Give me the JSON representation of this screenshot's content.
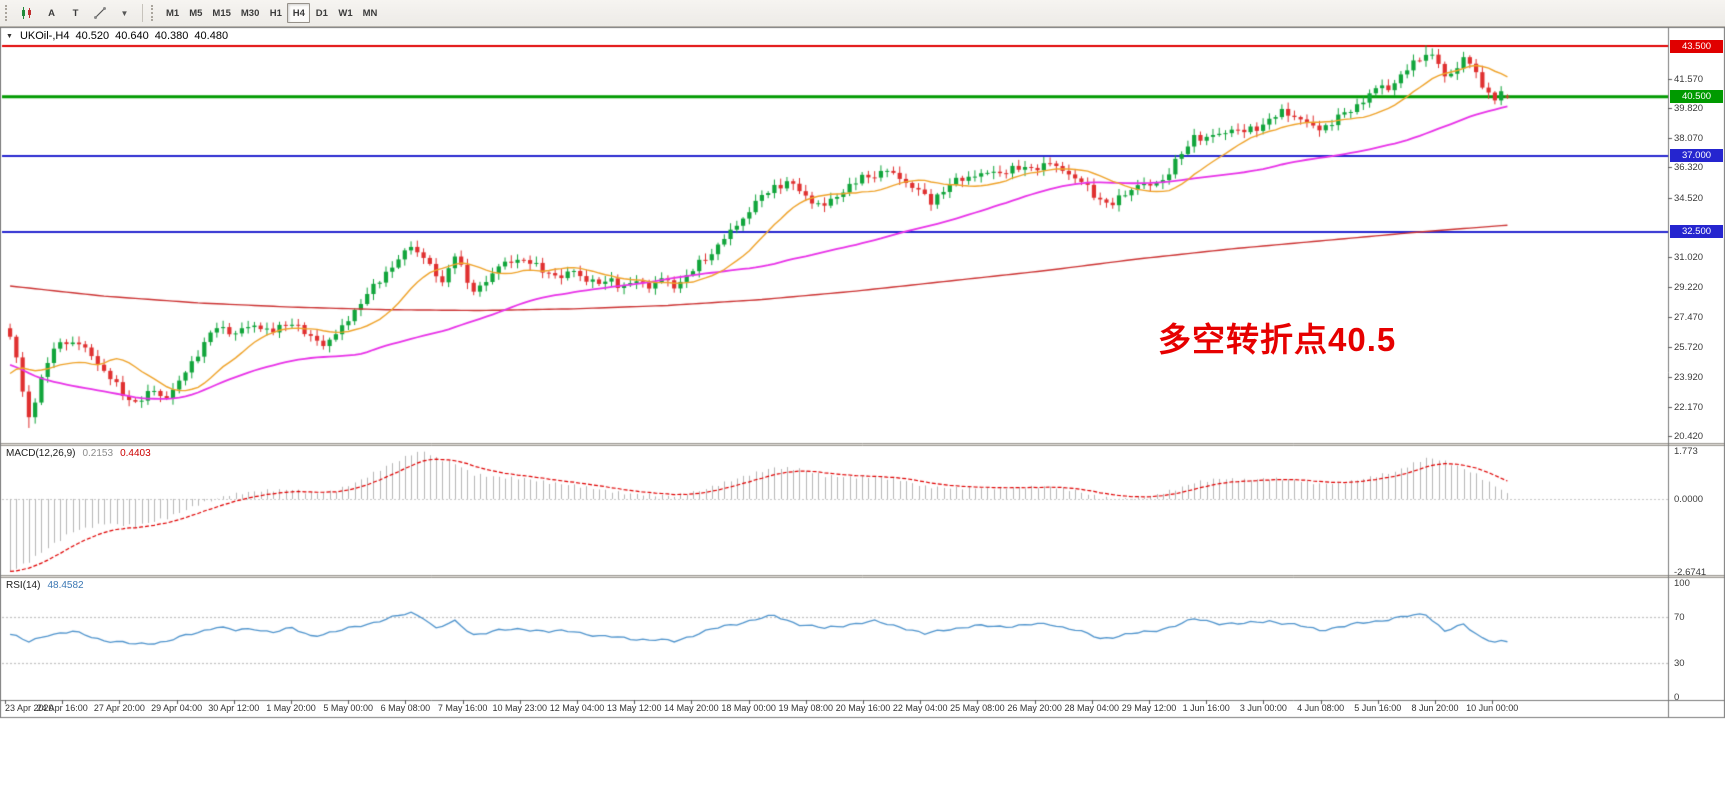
{
  "toolbar": {
    "arrow_tool_label": "A",
    "text_tool_label": "T",
    "timeframes": [
      "M1",
      "M5",
      "M15",
      "M30",
      "H1",
      "H4",
      "D1",
      "W1",
      "MN"
    ],
    "active_timeframe": "H4"
  },
  "icons": {
    "symbol_caret": "▼",
    "tool_caret": "▼"
  },
  "chart_header": {
    "symbol": "UKOil-,H4",
    "open": "40.520",
    "high": "40.640",
    "low": "40.380",
    "close": "40.480"
  },
  "annotation": {
    "text": "多空转折点40.5",
    "color": "#e60000"
  },
  "price_axis": {
    "labels": [
      {
        "text": "41.570",
        "price": 41.57
      },
      {
        "text": "39.820",
        "price": 39.82
      },
      {
        "text": "38.070",
        "price": 38.07
      },
      {
        "text": "36.320",
        "price": 36.32
      },
      {
        "text": "34.520",
        "price": 34.52
      },
      {
        "text": "31.020",
        "price": 31.02
      },
      {
        "text": "29.220",
        "price": 29.22
      },
      {
        "text": "27.470",
        "price": 27.47
      },
      {
        "text": "25.720",
        "price": 25.72
      },
      {
        "text": "23.920",
        "price": 23.92
      },
      {
        "text": "22.170",
        "price": 22.17
      },
      {
        "text": "20.420",
        "price": 20.42
      }
    ],
    "badges": [
      {
        "text": "43.500",
        "price": 43.5,
        "color": "#e00000",
        "line_width": 2
      },
      {
        "text": "40.500",
        "price": 40.5,
        "color": "#009a00",
        "line_width": 3
      },
      {
        "text": "37.000",
        "price": 37.0,
        "color": "#2525cf",
        "line_width": 2
      },
      {
        "text": "32.500",
        "price": 32.5,
        "color": "#2525cf",
        "line_width": 2
      }
    ]
  },
  "macd": {
    "title": "MACD(12,26,9)",
    "value_main": "0.2153",
    "value_signal": "0.4403",
    "axis_labels": [
      {
        "text": "1.773",
        "value": 1.773
      },
      {
        "text": "0.0000",
        "value": 0
      },
      {
        "text": "-2.6741",
        "value": -2.6741
      }
    ]
  },
  "rsi": {
    "title": "RSI(14)",
    "value": "48.4582",
    "levels": [
      70,
      30
    ],
    "axis_labels": [
      {
        "text": "100",
        "value": 100
      },
      {
        "text": "70",
        "value": 70
      },
      {
        "text": "30",
        "value": 30
      },
      {
        "text": "0",
        "value": 0
      }
    ]
  },
  "time_axis": {
    "labels": [
      "23 Apr 2020",
      "24 Apr 16:00",
      "27 Apr 20:00",
      "29 Apr 04:00",
      "30 Apr 12:00",
      "1 May 20:00",
      "5 May 00:00",
      "6 May 08:00",
      "7 May 16:00",
      "10 May 23:00",
      "12 May 04:00",
      "13 May 12:00",
      "14 May 20:00",
      "18 May 00:00",
      "19 May 08:00",
      "20 May 16:00",
      "22 May 04:00",
      "25 May 08:00",
      "26 May 20:00",
      "28 May 04:00",
      "29 May 12:00",
      "1 Jun 16:00",
      "3 Jun 00:00",
      "4 Jun 08:00",
      "5 Jun 16:00",
      "8 Jun 20:00",
      "10 Jun 00:00"
    ]
  },
  "colors": {
    "bull": "#11a53b",
    "bear": "#e03030",
    "ma_fast": "#efa32a",
    "ma_mid": "#e832e8",
    "ma_slow": "#cc3333",
    "macd_hist": "#b6b6b6",
    "macd_signal": "#e00000",
    "rsi": "#4f94cd"
  },
  "chart_data": {
    "type": "candlestick",
    "symbol": "UKOil-",
    "period": "H4",
    "bars": 240,
    "price_range": [
      20.01,
      44.57
    ],
    "ohlc_current": {
      "open": 40.52,
      "high": 40.64,
      "low": 40.38,
      "close": 40.48
    },
    "levels": [
      43.5,
      40.5,
      37.0,
      32.5
    ],
    "extremes": {
      "max_high": 43.55,
      "max_high_bar": 226,
      "min_low": 20.9,
      "min_low_bar": 3
    },
    "pre_history_anchors": [
      [
        -60,
        34.0
      ],
      [
        -45,
        30.0
      ],
      [
        -35,
        26.0
      ],
      [
        -28,
        21.0
      ],
      [
        -24,
        17.5
      ],
      [
        -20,
        18.5
      ],
      [
        -14,
        21.0
      ],
      [
        -8,
        23.5
      ],
      [
        -3,
        25.2
      ]
    ],
    "price_path_anchors": [
      [
        0,
        26.3
      ],
      [
        1,
        25.0
      ],
      [
        2,
        23.0
      ],
      [
        3,
        21.5
      ],
      [
        5,
        23.8
      ],
      [
        7,
        25.6
      ],
      [
        9,
        26.1
      ],
      [
        12,
        25.6
      ],
      [
        15,
        24.3
      ],
      [
        18,
        22.9
      ],
      [
        20,
        22.4
      ],
      [
        23,
        23.1
      ],
      [
        25,
        22.7
      ],
      [
        27,
        23.6
      ],
      [
        29,
        24.8
      ],
      [
        31,
        25.9
      ],
      [
        33,
        26.9
      ],
      [
        36,
        26.5
      ],
      [
        39,
        27.0
      ],
      [
        42,
        26.6
      ],
      [
        45,
        27.2
      ],
      [
        48,
        26.2
      ],
      [
        50,
        25.9
      ],
      [
        52,
        26.4
      ],
      [
        54,
        27.3
      ],
      [
        56,
        28.4
      ],
      [
        58,
        29.2
      ],
      [
        60,
        30.1
      ],
      [
        62,
        30.9
      ],
      [
        64,
        31.6
      ],
      [
        66,
        31.1
      ],
      [
        68,
        29.9
      ],
      [
        69,
        29.4
      ],
      [
        71,
        31.3
      ],
      [
        73,
        29.5
      ],
      [
        74,
        28.9
      ],
      [
        76,
        29.7
      ],
      [
        78,
        30.4
      ],
      [
        80,
        30.8
      ],
      [
        82,
        30.9
      ],
      [
        84,
        30.4
      ],
      [
        86,
        30.1
      ],
      [
        88,
        29.8
      ],
      [
        90,
        30.2
      ],
      [
        92,
        29.7
      ],
      [
        94,
        29.4
      ],
      [
        96,
        29.7
      ],
      [
        98,
        29.2
      ],
      [
        100,
        29.6
      ],
      [
        102,
        29.3
      ],
      [
        104,
        29.7
      ],
      [
        106,
        29.3
      ],
      [
        108,
        29.9
      ],
      [
        110,
        30.6
      ],
      [
        112,
        31.3
      ],
      [
        114,
        32.1
      ],
      [
        116,
        32.9
      ],
      [
        118,
        33.8
      ],
      [
        120,
        34.6
      ],
      [
        122,
        35.2
      ],
      [
        124,
        35.4
      ],
      [
        126,
        35.0
      ],
      [
        128,
        34.3
      ],
      [
        130,
        34.0
      ],
      [
        132,
        34.7
      ],
      [
        134,
        35.2
      ],
      [
        136,
        35.7
      ],
      [
        138,
        35.9
      ],
      [
        140,
        36.1
      ],
      [
        142,
        35.7
      ],
      [
        144,
        35.2
      ],
      [
        146,
        34.6
      ],
      [
        147,
        34.3
      ],
      [
        149,
        35.0
      ],
      [
        151,
        35.5
      ],
      [
        153,
        35.8
      ],
      [
        155,
        35.9
      ],
      [
        157,
        36.0
      ],
      [
        160,
        36.2
      ],
      [
        163,
        36.3
      ],
      [
        166,
        36.5
      ],
      [
        168,
        36.2
      ],
      [
        170,
        35.7
      ],
      [
        172,
        35.1
      ],
      [
        174,
        34.4
      ],
      [
        176,
        34.1
      ],
      [
        178,
        34.8
      ],
      [
        180,
        35.3
      ],
      [
        182,
        35.2
      ],
      [
        184,
        35.6
      ],
      [
        186,
        36.6
      ],
      [
        188,
        37.6
      ],
      [
        189,
        38.2
      ],
      [
        191,
        38.0
      ],
      [
        193,
        38.3
      ],
      [
        195,
        38.6
      ],
      [
        197,
        38.4
      ],
      [
        199,
        38.7
      ],
      [
        201,
        39.1
      ],
      [
        203,
        39.6
      ],
      [
        205,
        39.4
      ],
      [
        207,
        38.9
      ],
      [
        209,
        38.6
      ],
      [
        211,
        39.0
      ],
      [
        213,
        39.5
      ],
      [
        215,
        40.0
      ],
      [
        217,
        40.6
      ],
      [
        219,
        41.2
      ],
      [
        220,
        41.0
      ],
      [
        222,
        41.7
      ],
      [
        224,
        42.5
      ],
      [
        226,
        43.1
      ],
      [
        228,
        42.5
      ],
      [
        229,
        41.6
      ],
      [
        231,
        42.3
      ],
      [
        232,
        42.8
      ],
      [
        234,
        41.9
      ],
      [
        235,
        41.2
      ],
      [
        236,
        40.7
      ],
      [
        237,
        40.4
      ],
      [
        238,
        40.7
      ],
      [
        239,
        40.48
      ]
    ],
    "ma_fast_period": 13,
    "ma_mid_period": 55,
    "ma_slow_anchors": [
      [
        0,
        29.3
      ],
      [
        15,
        28.7
      ],
      [
        30,
        28.3
      ],
      [
        45,
        28.05
      ],
      [
        60,
        27.9
      ],
      [
        75,
        27.85
      ],
      [
        90,
        27.95
      ],
      [
        105,
        28.15
      ],
      [
        120,
        28.5
      ],
      [
        135,
        29.0
      ],
      [
        150,
        29.6
      ],
      [
        165,
        30.2
      ],
      [
        180,
        30.9
      ],
      [
        195,
        31.5
      ],
      [
        210,
        32.0
      ],
      [
        225,
        32.5
      ],
      [
        239,
        32.9
      ]
    ],
    "macd_current": [
      0.2153,
      0.4403
    ],
    "macd_anchors": [
      [
        0,
        -2.67
      ],
      [
        3,
        -2.3
      ],
      [
        6,
        -1.8
      ],
      [
        10,
        -1.2
      ],
      [
        15,
        -0.9
      ],
      [
        20,
        -1.0
      ],
      [
        25,
        -0.7
      ],
      [
        30,
        -0.2
      ],
      [
        35,
        0.15
      ],
      [
        40,
        0.3
      ],
      [
        45,
        0.35
      ],
      [
        48,
        0.2
      ],
      [
        52,
        0.3
      ],
      [
        56,
        0.7
      ],
      [
        60,
        1.2
      ],
      [
        64,
        1.65
      ],
      [
        66,
        1.75
      ],
      [
        68,
        1.5
      ],
      [
        71,
        1.3
      ],
      [
        74,
        0.9
      ],
      [
        78,
        0.8
      ],
      [
        82,
        0.75
      ],
      [
        86,
        0.6
      ],
      [
        90,
        0.5
      ],
      [
        94,
        0.35
      ],
      [
        98,
        0.2
      ],
      [
        102,
        0.15
      ],
      [
        106,
        0.1
      ],
      [
        110,
        0.3
      ],
      [
        114,
        0.6
      ],
      [
        118,
        0.9
      ],
      [
        122,
        1.15
      ],
      [
        126,
        1.1
      ],
      [
        130,
        0.85
      ],
      [
        134,
        0.8
      ],
      [
        138,
        0.8
      ],
      [
        142,
        0.7
      ],
      [
        146,
        0.45
      ],
      [
        150,
        0.4
      ],
      [
        158,
        0.4
      ],
      [
        166,
        0.45
      ],
      [
        170,
        0.3
      ],
      [
        174,
        0.05
      ],
      [
        178,
        0.0
      ],
      [
        182,
        0.1
      ],
      [
        186,
        0.35
      ],
      [
        189,
        0.6
      ],
      [
        193,
        0.75
      ],
      [
        197,
        0.7
      ],
      [
        201,
        0.75
      ],
      [
        205,
        0.7
      ],
      [
        209,
        0.55
      ],
      [
        213,
        0.6
      ],
      [
        217,
        0.8
      ],
      [
        221,
        1.0
      ],
      [
        224,
        1.3
      ],
      [
        226,
        1.5
      ],
      [
        228,
        1.45
      ],
      [
        231,
        1.2
      ],
      [
        234,
        0.9
      ],
      [
        236,
        0.6
      ],
      [
        238,
        0.35
      ],
      [
        239,
        0.2153
      ]
    ],
    "rsi_current": 48.4582,
    "rsi_anchors": [
      [
        0,
        55
      ],
      [
        3,
        48
      ],
      [
        6,
        55
      ],
      [
        10,
        57
      ],
      [
        15,
        50
      ],
      [
        20,
        46
      ],
      [
        25,
        49
      ],
      [
        29,
        55
      ],
      [
        33,
        62
      ],
      [
        36,
        58
      ],
      [
        39,
        60
      ],
      [
        42,
        57
      ],
      [
        45,
        60
      ],
      [
        48,
        54
      ],
      [
        52,
        57
      ],
      [
        56,
        63
      ],
      [
        60,
        68
      ],
      [
        64,
        74
      ],
      [
        66,
        70
      ],
      [
        68,
        60
      ],
      [
        71,
        66
      ],
      [
        74,
        55
      ],
      [
        78,
        58
      ],
      [
        82,
        60
      ],
      [
        86,
        57
      ],
      [
        90,
        58
      ],
      [
        94,
        53
      ],
      [
        98,
        52
      ],
      [
        102,
        50
      ],
      [
        106,
        49
      ],
      [
        110,
        56
      ],
      [
        114,
        62
      ],
      [
        118,
        67
      ],
      [
        122,
        71
      ],
      [
        126,
        64
      ],
      [
        130,
        60
      ],
      [
        134,
        64
      ],
      [
        138,
        66
      ],
      [
        142,
        62
      ],
      [
        146,
        55
      ],
      [
        150,
        60
      ],
      [
        154,
        62
      ],
      [
        158,
        62
      ],
      [
        162,
        63
      ],
      [
        166,
        64
      ],
      [
        170,
        59
      ],
      [
        174,
        51
      ],
      [
        178,
        55
      ],
      [
        182,
        57
      ],
      [
        186,
        63
      ],
      [
        189,
        68
      ],
      [
        193,
        65
      ],
      [
        197,
        64
      ],
      [
        201,
        67
      ],
      [
        205,
        63
      ],
      [
        209,
        59
      ],
      [
        213,
        62
      ],
      [
        217,
        66
      ],
      [
        221,
        69
      ],
      [
        226,
        73
      ],
      [
        229,
        58
      ],
      [
        232,
        63
      ],
      [
        235,
        52
      ],
      [
        237,
        49
      ],
      [
        239,
        48.4582
      ]
    ]
  }
}
